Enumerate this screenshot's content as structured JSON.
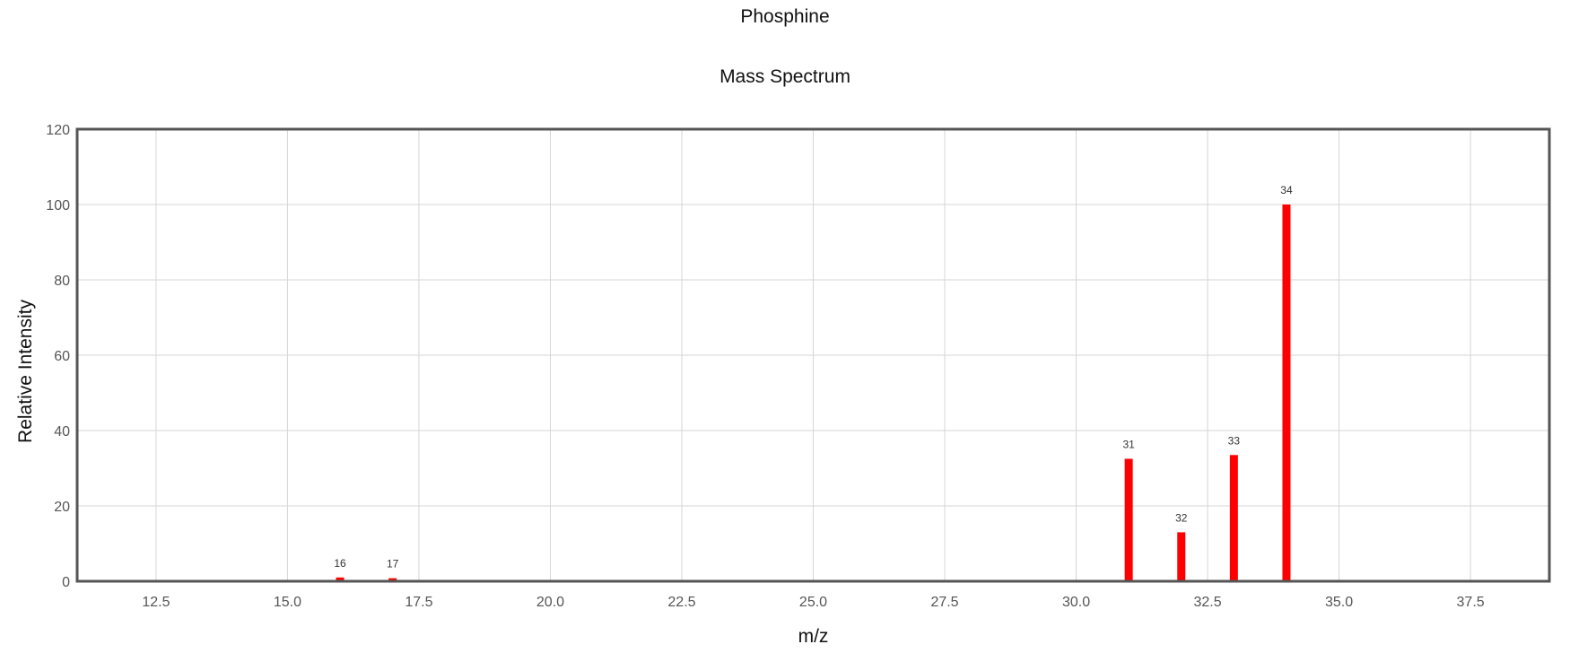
{
  "chart_data": {
    "type": "bar",
    "title": "Phosphine",
    "subtitle": "Mass Spectrum",
    "xlabel": "m/z",
    "ylabel": "Relative Intensity",
    "xlim": [
      11,
      39
    ],
    "ylim": [
      0,
      120
    ],
    "x_ticks": [
      12.5,
      15.0,
      17.5,
      20.0,
      22.5,
      25.0,
      27.5,
      30.0,
      32.5,
      35.0,
      37.5
    ],
    "x_tick_labels": [
      "12.5",
      "15.0",
      "17.5",
      "20.0",
      "22.5",
      "25.0",
      "27.5",
      "30.0",
      "32.5",
      "35.0",
      "37.5"
    ],
    "y_ticks": [
      0,
      20,
      40,
      60,
      80,
      100,
      120
    ],
    "y_tick_labels": [
      "0",
      "20",
      "40",
      "60",
      "80",
      "100",
      "120"
    ],
    "grid": true,
    "bar_color": "#ff0000",
    "peaks": [
      {
        "mz": 16,
        "intensity": 1,
        "label": "16"
      },
      {
        "mz": 17,
        "intensity": 0.8,
        "label": "17"
      },
      {
        "mz": 31,
        "intensity": 32.5,
        "label": "31"
      },
      {
        "mz": 32,
        "intensity": 13,
        "label": "32"
      },
      {
        "mz": 33,
        "intensity": 33.5,
        "label": "33"
      },
      {
        "mz": 34,
        "intensity": 100,
        "label": "34"
      }
    ]
  }
}
